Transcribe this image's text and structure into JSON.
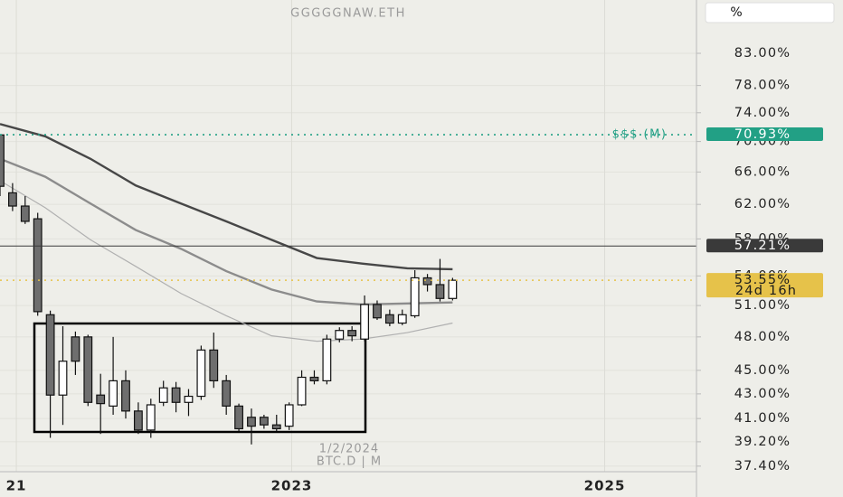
{
  "chart_data": {
    "type": "candlestick",
    "title": "GGGGGNAW.ETH",
    "date_label": "1/2/2024",
    "symbol_label": "BTC.D | M",
    "unit_button": "%",
    "log": true,
    "grid": true,
    "ylim": [
      37,
      92
    ],
    "yticks": [
      {
        "value": 37.4,
        "label": "37.40%"
      },
      {
        "value": 39.2,
        "label": "39.20%"
      },
      {
        "value": 41,
        "label": "41.00%"
      },
      {
        "value": 43,
        "label": "43.00%"
      },
      {
        "value": 45,
        "label": "45.00%"
      },
      {
        "value": 48,
        "label": "48.00%"
      },
      {
        "value": 51,
        "label": "51.00%"
      },
      {
        "value": 54,
        "label": "54.00%"
      },
      {
        "value": 58,
        "label": "58.00%"
      },
      {
        "value": 62,
        "label": "62.00%"
      },
      {
        "value": 66,
        "label": "66.00%"
      },
      {
        "value": 70,
        "label": "70.00%"
      },
      {
        "value": 74,
        "label": "74.00%"
      },
      {
        "value": 78,
        "label": "78.00%"
      },
      {
        "value": 83,
        "label": "83.00%"
      }
    ],
    "xlim": [
      0,
      55.4
    ],
    "xticks": [
      {
        "value": 1.3,
        "label": "21"
      },
      {
        "value": 23.2,
        "label": "2023"
      },
      {
        "value": 48.1,
        "label": "2025"
      }
    ],
    "categories": [
      null,
      null,
      null,
      null,
      null,
      null,
      null,
      null,
      null,
      null,
      null,
      null,
      null,
      null,
      null,
      null,
      null,
      null,
      null,
      null,
      null,
      null,
      null,
      null,
      null,
      null,
      null,
      null,
      null,
      null,
      null,
      null,
      null,
      null,
      null,
      null,
      null
    ],
    "open": [
      70.9,
      63.4,
      61.8,
      60.3,
      50.1,
      42.9,
      48.0,
      48.0,
      42.9,
      42.0,
      44.1,
      41.6,
      40.1,
      42.3,
      43.5,
      42.3,
      42.8,
      46.8,
      44.1,
      42.0,
      41.1,
      41.1,
      40.5,
      40.4,
      42.1,
      44.4,
      44.1,
      47.8,
      48.6,
      47.8,
      51.1,
      50.1,
      49.3,
      50.0,
      53.8,
      53.1,
      51.7
    ],
    "high": [
      71.0,
      64.6,
      63.0,
      61.0,
      50.5,
      49.0,
      48.5,
      48.2,
      44.7,
      48.0,
      45.0,
      42.3,
      42.6,
      44.1,
      44.0,
      43.4,
      47.2,
      48.4,
      44.6,
      42.2,
      41.8,
      41.3,
      41.3,
      42.3,
      45.0,
      45.0,
      48.2,
      48.9,
      49.0,
      52.0,
      51.5,
      50.6,
      50.6,
      54.6,
      54.2,
      55.8,
      53.8
    ],
    "low": [
      63.0,
      61.2,
      59.7,
      50.0,
      39.5,
      40.5,
      44.6,
      42.0,
      39.8,
      41.3,
      41.0,
      39.8,
      39.5,
      42.0,
      41.5,
      41.2,
      42.5,
      43.5,
      41.3,
      40.0,
      39.0,
      40.2,
      40.0,
      40.1,
      42.0,
      43.8,
      43.8,
      47.5,
      47.6,
      47.6,
      49.6,
      49.0,
      49.1,
      49.8,
      52.4,
      51.4,
      51.5
    ],
    "close": [
      64.2,
      61.8,
      60.0,
      50.4,
      42.9,
      45.8,
      45.8,
      42.3,
      42.2,
      44.1,
      41.6,
      40.1,
      42.1,
      43.5,
      42.3,
      42.8,
      46.8,
      44.1,
      42.0,
      40.2,
      40.4,
      40.5,
      40.2,
      42.1,
      44.4,
      44.1,
      47.8,
      48.6,
      48.1,
      51.1,
      49.8,
      49.3,
      50.1,
      53.8,
      53.1,
      51.7,
      53.55
    ],
    "up_color": "#ffffff",
    "down_color": "#6e6e6e",
    "lines": [
      {
        "color": "#474747",
        "x": [
          0,
          3.6,
          7.2,
          10.8,
          14.4,
          18,
          21.6,
          25.2,
          28.8,
          32.4,
          36
        ],
        "values": [
          72.4,
          70.7,
          67.7,
          64.3,
          62.1,
          60.0,
          57.9,
          55.9,
          55.3,
          54.8,
          54.7
        ]
      },
      {
        "color": "#8c8c8c",
        "x": [
          0,
          3.6,
          7.2,
          10.8,
          14.4,
          18,
          21.6,
          25.2,
          28.8,
          32.4,
          36
        ],
        "values": [
          67.7,
          65.4,
          62.1,
          59.0,
          56.9,
          54.5,
          52.6,
          51.4,
          51.1,
          51.2,
          51.3
        ]
      },
      {
        "color": "#b0b0b0",
        "x": [
          0,
          3.6,
          7.2,
          10.8,
          14.4,
          18,
          21.6,
          25.2,
          28.8,
          32.4,
          36
        ],
        "values": [
          64.9,
          61.6,
          57.9,
          55.0,
          52.2,
          50.0,
          48.1,
          47.6,
          47.8,
          48.4,
          49.3
        ]
      }
    ],
    "levels": [
      {
        "value": 70.93,
        "label": "70.93%",
        "text": "$$$ (M)",
        "color": "#22a085",
        "style": "dotted"
      },
      {
        "value": 57.21,
        "label": "57.21%",
        "color": "#3a3a3a",
        "style": "solid"
      },
      {
        "value": 53.55,
        "label": "53.55%",
        "countdown": "24d 16h",
        "color": "#e6c24a",
        "style": "dotted"
      }
    ]
  }
}
